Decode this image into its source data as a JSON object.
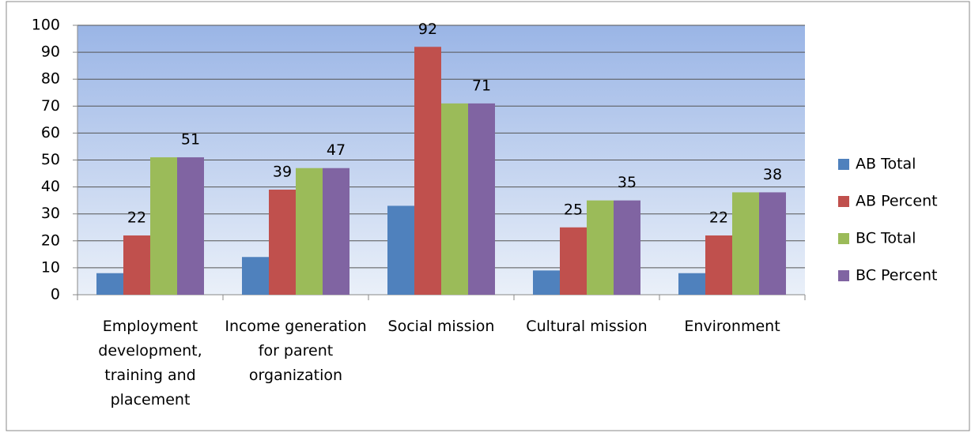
{
  "chart_data": {
    "type": "bar",
    "categories": [
      "Employment development, training and placement",
      "Income generation for parent organization",
      "Social mission",
      "Cultural mission",
      "Environment"
    ],
    "series": [
      {
        "name": "AB Total",
        "color": "#4f81bd",
        "values": [
          8,
          14,
          33,
          9,
          8
        ],
        "labels": false
      },
      {
        "name": "AB Percent",
        "color": "#c0504d",
        "values": [
          22,
          39,
          92,
          25,
          22
        ],
        "labels": true
      },
      {
        "name": "BC Total",
        "color": "#9bbb59",
        "values": [
          51,
          47,
          71,
          35,
          38
        ],
        "labels": false
      },
      {
        "name": "BC Percent",
        "color": "#8064a2",
        "values": [
          51,
          47,
          71,
          35,
          38
        ],
        "labels": true
      }
    ],
    "ylim": [
      0,
      100
    ],
    "yticks": [
      0,
      10,
      20,
      30,
      40,
      50,
      60,
      70,
      80,
      90,
      100
    ],
    "grid": true,
    "legend": "right"
  }
}
